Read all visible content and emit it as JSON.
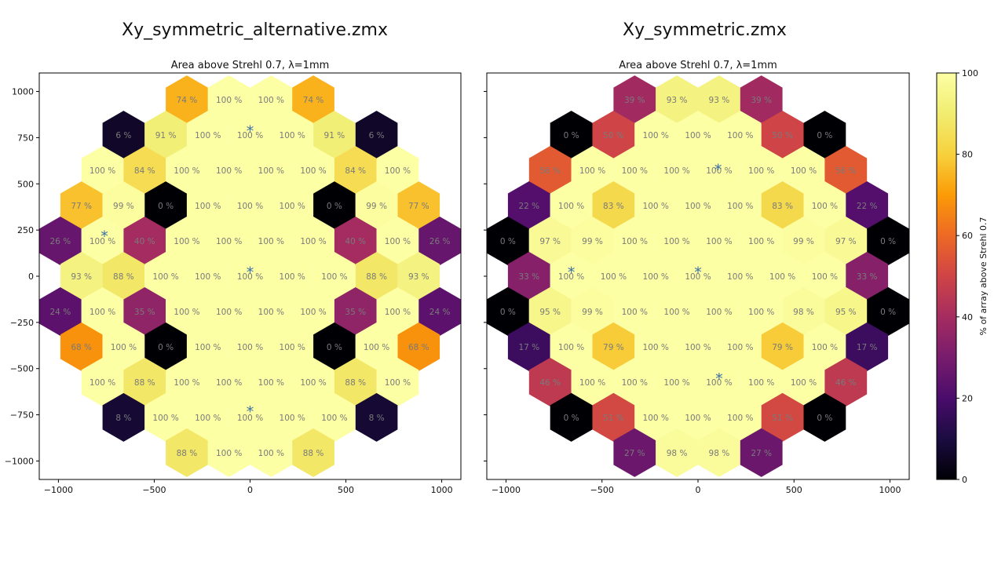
{
  "titles": {
    "left": "Xy_symmetric_alternative.zmx",
    "right": "Xy_symmetric.zmx"
  },
  "colorbar": {
    "label": "% of array above Strehl 0.7",
    "ticks": [
      "0",
      "20",
      "40",
      "60",
      "80",
      "100"
    ],
    "colormap": "inferno",
    "range": [
      0,
      100
    ]
  },
  "chart_data": [
    {
      "type": "heatmap",
      "title": "Area above Strehl 0.7, λ=1mm",
      "xlim": [
        -1100,
        1100
      ],
      "ylim": [
        -1100,
        1100
      ],
      "xticks": [
        -1000,
        -500,
        0,
        500,
        1000
      ],
      "yticks": [
        1000,
        750,
        500,
        250,
        0,
        -250,
        -500,
        -750,
        -1000
      ],
      "xtick_labels": [
        "−1000",
        "−500",
        "0",
        "500",
        "1000"
      ],
      "ytick_labels": [
        "1000",
        "750",
        "500",
        "250",
        "0",
        "−250",
        "−500",
        "−750",
        "−1000"
      ],
      "unit_label": "%",
      "rows": [
        {
          "y": 955,
          "x": [
            -330,
            -110,
            110,
            330
          ],
          "values": [
            74,
            100,
            100,
            74
          ]
        },
        {
          "y": 764,
          "x": [
            -660,
            -440,
            -220,
            0,
            220,
            440,
            660
          ],
          "values": [
            6,
            91,
            100,
            100,
            100,
            91,
            6
          ]
        },
        {
          "y": 573,
          "x": [
            -770,
            -550,
            -330,
            -110,
            110,
            330,
            550,
            770
          ],
          "values": [
            100,
            84,
            100,
            100,
            100,
            100,
            84,
            100
          ]
        },
        {
          "y": 382,
          "x": [
            -880,
            -660,
            -440,
            -220,
            0,
            220,
            440,
            660,
            880
          ],
          "values": [
            77,
            99,
            0,
            100,
            100,
            100,
            0,
            99,
            77
          ]
        },
        {
          "y": 191,
          "x": [
            -990,
            -770,
            -550,
            -330,
            -110,
            110,
            330,
            550,
            770,
            990
          ],
          "values": [
            26,
            100,
            40,
            100,
            100,
            100,
            100,
            40,
            100,
            26
          ]
        },
        {
          "y": 0,
          "x": [
            -880,
            -660,
            -440,
            -220,
            0,
            220,
            440,
            660,
            880
          ],
          "values": [
            93,
            88,
            100,
            100,
            100,
            100,
            100,
            88,
            93
          ]
        },
        {
          "y": -191,
          "x": [
            -990,
            -770,
            -550,
            -330,
            -110,
            110,
            330,
            550,
            770,
            990
          ],
          "values": [
            24,
            100,
            35,
            100,
            100,
            100,
            100,
            35,
            100,
            24
          ]
        },
        {
          "y": -382,
          "x": [
            -880,
            -660,
            -440,
            -220,
            0,
            220,
            440,
            660,
            880
          ],
          "values": [
            68,
            100,
            0,
            100,
            100,
            100,
            0,
            100,
            68
          ]
        },
        {
          "y": -573,
          "x": [
            -770,
            -550,
            -330,
            -110,
            110,
            330,
            550,
            770
          ],
          "values": [
            100,
            88,
            100,
            100,
            100,
            100,
            88,
            100
          ]
        },
        {
          "y": -764,
          "x": [
            -660,
            -440,
            -220,
            0,
            220,
            440,
            660
          ],
          "values": [
            8,
            100,
            100,
            100,
            100,
            100,
            8
          ]
        },
        {
          "y": -955,
          "x": [
            -330,
            -110,
            110,
            330
          ],
          "values": [
            88,
            100,
            100,
            88
          ]
        }
      ],
      "stars": [
        {
          "x": 0,
          "y": 810
        },
        {
          "x": -760,
          "y": 240
        },
        {
          "x": 0,
          "y": 45
        },
        {
          "x": 0,
          "y": -710
        }
      ]
    },
    {
      "type": "heatmap",
      "title": "Area above Strehl 0.7, λ=1mm",
      "xlim": [
        -1100,
        1100
      ],
      "ylim": [
        -1100,
        1100
      ],
      "xticks": [
        -1000,
        -500,
        0,
        500,
        1000
      ],
      "xtick_labels": [
        "−1000",
        "−500",
        "0",
        "500",
        "1000"
      ],
      "unit_label": "%",
      "rows": [
        {
          "y": 955,
          "x": [
            -330,
            -110,
            110,
            330
          ],
          "values": [
            39,
            93,
            93,
            39
          ]
        },
        {
          "y": 764,
          "x": [
            -660,
            -440,
            -220,
            0,
            220,
            440,
            660
          ],
          "values": [
            0,
            50,
            100,
            100,
            100,
            50,
            0
          ]
        },
        {
          "y": 573,
          "x": [
            -770,
            -550,
            -330,
            -110,
            110,
            330,
            550,
            770
          ],
          "values": [
            56,
            100,
            100,
            100,
            100,
            100,
            100,
            56
          ]
        },
        {
          "y": 382,
          "x": [
            -880,
            -660,
            -440,
            -220,
            0,
            220,
            440,
            660,
            880
          ],
          "values": [
            22,
            100,
            83,
            100,
            100,
            100,
            83,
            100,
            22
          ]
        },
        {
          "y": 191,
          "x": [
            -990,
            -770,
            -550,
            -330,
            -110,
            110,
            330,
            550,
            770,
            990
          ],
          "values": [
            0,
            97,
            99,
            100,
            100,
            100,
            100,
            99,
            97,
            0
          ]
        },
        {
          "y": 0,
          "x": [
            -880,
            -660,
            -440,
            -220,
            0,
            220,
            440,
            660,
            880
          ],
          "values": [
            33,
            100,
            100,
            100,
            100,
            100,
            100,
            100,
            33
          ]
        },
        {
          "y": -191,
          "x": [
            -990,
            -770,
            -550,
            -330,
            -110,
            110,
            330,
            550,
            770,
            990
          ],
          "values": [
            0,
            95,
            99,
            100,
            100,
            100,
            100,
            98,
            95,
            0
          ]
        },
        {
          "y": -382,
          "x": [
            -880,
            -660,
            -440,
            -220,
            0,
            220,
            440,
            660,
            880
          ],
          "values": [
            17,
            100,
            79,
            100,
            100,
            100,
            79,
            100,
            17
          ]
        },
        {
          "y": -573,
          "x": [
            -770,
            -550,
            -330,
            -110,
            110,
            330,
            550,
            770
          ],
          "values": [
            46,
            100,
            100,
            100,
            100,
            100,
            100,
            46
          ]
        },
        {
          "y": -764,
          "x": [
            -660,
            -440,
            -220,
            0,
            220,
            440,
            660
          ],
          "values": [
            0,
            51,
            100,
            100,
            100,
            51,
            0
          ]
        },
        {
          "y": -955,
          "x": [
            -330,
            -110,
            110,
            330
          ],
          "values": [
            27,
            98,
            98,
            27
          ]
        }
      ],
      "stars": [
        {
          "x": 105,
          "y": 600
        },
        {
          "x": -660,
          "y": 45
        },
        {
          "x": 0,
          "y": 45
        },
        {
          "x": 110,
          "y": -530
        }
      ]
    }
  ]
}
